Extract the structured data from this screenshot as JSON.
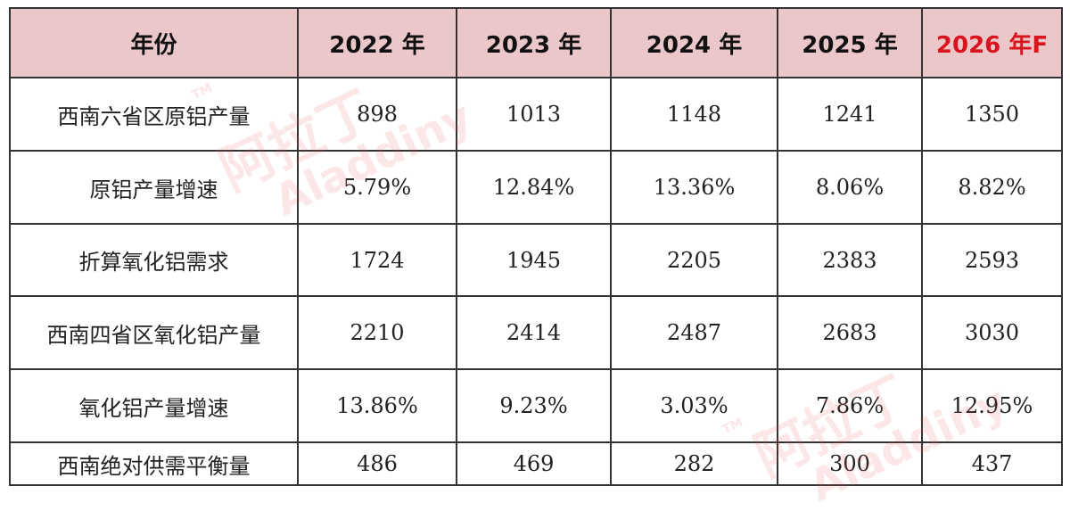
{
  "table": {
    "header": [
      "年份",
      "2022 年",
      "2023 年",
      "2024 年",
      "2025 年",
      "2026 年F"
    ],
    "rows": [
      [
        "西南六省区原铝产量",
        "898",
        "1013",
        "1148",
        "1241",
        "1350"
      ],
      [
        "原铝产量增速",
        "5.79%",
        "12.84%",
        "13.36%",
        "8.06%",
        "8.82%"
      ],
      [
        "折算氧化铝需求",
        "1724",
        "1945",
        "2205",
        "2383",
        "2593"
      ],
      [
        "西南四省区氧化铝产量",
        "2210",
        "2414",
        "2487",
        "2683",
        "3030"
      ],
      [
        "氧化铝产量增速",
        "13.86%",
        "9.23%",
        "3.03%",
        "7.86%",
        "12.95%"
      ],
      [
        "西南绝对供需平衡量",
        "486",
        "469",
        "282",
        "300",
        "437"
      ]
    ]
  },
  "watermark": {
    "cn": "阿拉丁",
    "en": "Aladdiny",
    "tm": "TM"
  }
}
